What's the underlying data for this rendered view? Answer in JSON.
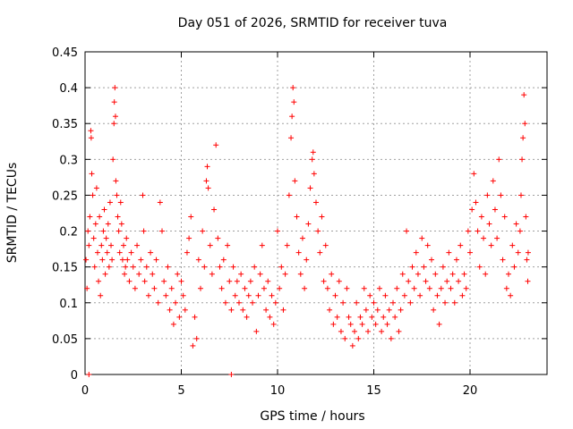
{
  "chart_data": {
    "type": "scatter",
    "title": "Day 051 of 2026, SRMTID for receiver tuva",
    "xlabel": "GPS time / hours",
    "ylabel": "SRMTID / TECUs",
    "xlim": [
      0,
      24
    ],
    "ylim": [
      0,
      0.45
    ],
    "xticks": [
      0,
      5,
      10,
      15,
      20
    ],
    "xtick_labels": [
      "0",
      "5",
      "10",
      "15",
      "20"
    ],
    "yticks": [
      0,
      0.05,
      0.1,
      0.15,
      0.2,
      0.25,
      0.3,
      0.35,
      0.4,
      0.45
    ],
    "ytick_labels": [
      "0",
      "0.05",
      "0.1",
      "0.15",
      "0.2",
      "0.25",
      "0.3",
      "0.35",
      "0.4",
      "0.45"
    ],
    "grid": true,
    "marker": "+",
    "color": "#ff0000",
    "series": [
      {
        "name": "SRMTID",
        "points": [
          [
            0.05,
            0.16
          ],
          [
            0.1,
            0.12
          ],
          [
            0.15,
            0.2
          ],
          [
            0.2,
            0.18
          ],
          [
            0.25,
            0.22
          ],
          [
            0.3,
            0.34
          ],
          [
            0.32,
            0.33
          ],
          [
            0.35,
            0.28
          ],
          [
            0.4,
            0.25
          ],
          [
            0.45,
            0.19
          ],
          [
            0.5,
            0.15
          ],
          [
            0.55,
            0.21
          ],
          [
            0.6,
            0.26
          ],
          [
            0.65,
            0.17
          ],
          [
            0.7,
            0.13
          ],
          [
            0.75,
            0.22
          ],
          [
            0.8,
            0.11
          ],
          [
            0.85,
            0.18
          ],
          [
            0.9,
            0.16
          ],
          [
            0.95,
            0.2
          ],
          [
            1.0,
            0.23
          ],
          [
            1.05,
            0.14
          ],
          [
            1.1,
            0.19
          ],
          [
            1.15,
            0.17
          ],
          [
            1.2,
            0.21
          ],
          [
            1.25,
            0.15
          ],
          [
            1.3,
            0.24
          ],
          [
            1.35,
            0.18
          ],
          [
            1.4,
            0.16
          ],
          [
            1.45,
            0.3
          ],
          [
            1.5,
            0.35
          ],
          [
            1.52,
            0.38
          ],
          [
            1.55,
            0.4
          ],
          [
            1.58,
            0.36
          ],
          [
            1.6,
            0.27
          ],
          [
            1.65,
            0.25
          ],
          [
            1.7,
            0.22
          ],
          [
            1.75,
            0.2
          ],
          [
            1.8,
            0.17
          ],
          [
            1.85,
            0.24
          ],
          [
            1.9,
            0.21
          ],
          [
            1.95,
            0.16
          ],
          [
            2.0,
            0.18
          ],
          [
            2.05,
            0.14
          ],
          [
            2.1,
            0.15
          ],
          [
            2.15,
            0.19
          ],
          [
            2.2,
            0.16
          ],
          [
            2.3,
            0.13
          ],
          [
            2.4,
            0.17
          ],
          [
            2.5,
            0.15
          ],
          [
            2.6,
            0.12
          ],
          [
            2.7,
            0.18
          ],
          [
            2.8,
            0.14
          ],
          [
            2.9,
            0.16
          ],
          [
            3.0,
            0.25
          ],
          [
            3.05,
            0.2
          ],
          [
            3.1,
            0.13
          ],
          [
            3.2,
            0.15
          ],
          [
            3.3,
            0.11
          ],
          [
            3.4,
            0.17
          ],
          [
            3.5,
            0.14
          ],
          [
            3.6,
            0.12
          ],
          [
            3.7,
            0.16
          ],
          [
            3.8,
            0.1
          ],
          [
            3.9,
            0.24
          ],
          [
            4.0,
            0.2
          ],
          [
            4.1,
            0.13
          ],
          [
            4.2,
            0.11
          ],
          [
            4.3,
            0.15
          ],
          [
            4.4,
            0.09
          ],
          [
            4.5,
            0.12
          ],
          [
            4.6,
            0.07
          ],
          [
            4.7,
            0.1
          ],
          [
            4.8,
            0.14
          ],
          [
            4.9,
            0.08
          ],
          [
            5.0,
            0.13
          ],
          [
            5.1,
            0.11
          ],
          [
            5.2,
            0.09
          ],
          [
            5.3,
            0.17
          ],
          [
            5.4,
            0.19
          ],
          [
            5.5,
            0.22
          ],
          [
            5.6,
            0.04
          ],
          [
            5.7,
            0.08
          ],
          [
            5.8,
            0.05
          ],
          [
            5.9,
            0.16
          ],
          [
            6.0,
            0.12
          ],
          [
            6.1,
            0.2
          ],
          [
            6.2,
            0.15
          ],
          [
            6.3,
            0.27
          ],
          [
            6.35,
            0.29
          ],
          [
            6.4,
            0.26
          ],
          [
            6.5,
            0.18
          ],
          [
            6.6,
            0.14
          ],
          [
            6.7,
            0.23
          ],
          [
            6.8,
            0.32
          ],
          [
            6.9,
            0.19
          ],
          [
            7.0,
            0.15
          ],
          [
            7.1,
            0.12
          ],
          [
            7.2,
            0.16
          ],
          [
            7.3,
            0.1
          ],
          [
            7.4,
            0.18
          ],
          [
            7.5,
            0.13
          ],
          [
            7.6,
            0.09
          ],
          [
            7.7,
            0.15
          ],
          [
            7.8,
            0.11
          ],
          [
            7.9,
            0.13
          ],
          [
            8.0,
            0.1
          ],
          [
            8.1,
            0.14
          ],
          [
            8.2,
            0.09
          ],
          [
            8.3,
            0.12
          ],
          [
            8.4,
            0.08
          ],
          [
            8.5,
            0.11
          ],
          [
            8.6,
            0.13
          ],
          [
            8.7,
            0.1
          ],
          [
            8.8,
            0.15
          ],
          [
            8.9,
            0.06
          ],
          [
            9.0,
            0.11
          ],
          [
            9.1,
            0.14
          ],
          [
            9.2,
            0.18
          ],
          [
            9.3,
            0.12
          ],
          [
            9.4,
            0.09
          ],
          [
            9.5,
            0.13
          ],
          [
            9.6,
            0.08
          ],
          [
            9.7,
            0.11
          ],
          [
            9.8,
            0.07
          ],
          [
            9.9,
            0.1
          ],
          [
            10.0,
            0.2
          ],
          [
            10.1,
            0.12
          ],
          [
            10.2,
            0.15
          ],
          [
            10.3,
            0.09
          ],
          [
            10.4,
            0.14
          ],
          [
            10.5,
            0.18
          ],
          [
            10.6,
            0.25
          ],
          [
            10.7,
            0.33
          ],
          [
            10.75,
            0.36
          ],
          [
            10.8,
            0.4
          ],
          [
            10.85,
            0.38
          ],
          [
            10.9,
            0.27
          ],
          [
            11.0,
            0.22
          ],
          [
            11.1,
            0.17
          ],
          [
            11.2,
            0.14
          ],
          [
            11.3,
            0.19
          ],
          [
            11.4,
            0.12
          ],
          [
            11.5,
            0.16
          ],
          [
            11.6,
            0.21
          ],
          [
            11.7,
            0.26
          ],
          [
            11.8,
            0.3
          ],
          [
            11.85,
            0.31
          ],
          [
            11.9,
            0.28
          ],
          [
            12.0,
            0.24
          ],
          [
            12.1,
            0.2
          ],
          [
            12.2,
            0.17
          ],
          [
            12.3,
            0.22
          ],
          [
            12.4,
            0.13
          ],
          [
            12.5,
            0.18
          ],
          [
            12.6,
            0.12
          ],
          [
            12.7,
            0.09
          ],
          [
            12.8,
            0.14
          ],
          [
            12.9,
            0.07
          ],
          [
            13.0,
            0.11
          ],
          [
            13.1,
            0.08
          ],
          [
            13.2,
            0.13
          ],
          [
            13.3,
            0.06
          ],
          [
            13.4,
            0.1
          ],
          [
            13.5,
            0.05
          ],
          [
            13.6,
            0.12
          ],
          [
            13.7,
            0.08
          ],
          [
            13.8,
            0.07
          ],
          [
            13.9,
            0.04
          ],
          [
            14.0,
            0.06
          ],
          [
            14.1,
            0.1
          ],
          [
            14.2,
            0.05
          ],
          [
            14.3,
            0.08
          ],
          [
            14.4,
            0.07
          ],
          [
            14.5,
            0.12
          ],
          [
            14.6,
            0.09
          ],
          [
            14.7,
            0.06
          ],
          [
            14.8,
            0.11
          ],
          [
            14.9,
            0.08
          ],
          [
            15.0,
            0.1
          ],
          [
            15.1,
            0.07
          ],
          [
            15.2,
            0.09
          ],
          [
            15.3,
            0.12
          ],
          [
            15.4,
            0.06
          ],
          [
            15.5,
            0.08
          ],
          [
            15.6,
            0.11
          ],
          [
            15.7,
            0.07
          ],
          [
            15.8,
            0.09
          ],
          [
            15.9,
            0.05
          ],
          [
            16.0,
            0.1
          ],
          [
            16.1,
            0.08
          ],
          [
            16.2,
            0.12
          ],
          [
            16.3,
            0.06
          ],
          [
            16.4,
            0.09
          ],
          [
            16.5,
            0.14
          ],
          [
            16.6,
            0.11
          ],
          [
            16.7,
            0.2
          ],
          [
            16.8,
            0.13
          ],
          [
            16.9,
            0.1
          ],
          [
            17.0,
            0.15
          ],
          [
            17.1,
            0.12
          ],
          [
            17.2,
            0.17
          ],
          [
            17.3,
            0.14
          ],
          [
            17.4,
            0.11
          ],
          [
            17.5,
            0.19
          ],
          [
            17.6,
            0.15
          ],
          [
            17.7,
            0.13
          ],
          [
            17.8,
            0.18
          ],
          [
            17.9,
            0.12
          ],
          [
            18.0,
            0.16
          ],
          [
            18.1,
            0.09
          ],
          [
            18.2,
            0.14
          ],
          [
            18.3,
            0.11
          ],
          [
            18.4,
            0.07
          ],
          [
            18.5,
            0.12
          ],
          [
            18.6,
            0.15
          ],
          [
            18.7,
            0.1
          ],
          [
            18.8,
            0.13
          ],
          [
            18.9,
            0.17
          ],
          [
            19.0,
            0.12
          ],
          [
            19.1,
            0.14
          ],
          [
            19.2,
            0.1
          ],
          [
            19.3,
            0.16
          ],
          [
            19.4,
            0.13
          ],
          [
            19.5,
            0.18
          ],
          [
            19.6,
            0.11
          ],
          [
            19.7,
            0.14
          ],
          [
            19.8,
            0.12
          ],
          [
            19.9,
            0.2
          ],
          [
            20.0,
            0.17
          ],
          [
            20.1,
            0.23
          ],
          [
            20.2,
            0.28
          ],
          [
            20.3,
            0.24
          ],
          [
            20.4,
            0.2
          ],
          [
            20.5,
            0.15
          ],
          [
            20.6,
            0.22
          ],
          [
            20.7,
            0.19
          ],
          [
            20.8,
            0.14
          ],
          [
            20.9,
            0.25
          ],
          [
            21.0,
            0.21
          ],
          [
            21.1,
            0.18
          ],
          [
            21.2,
            0.27
          ],
          [
            21.3,
            0.23
          ],
          [
            21.4,
            0.19
          ],
          [
            21.5,
            0.3
          ],
          [
            21.6,
            0.25
          ],
          [
            21.7,
            0.16
          ],
          [
            21.8,
            0.22
          ],
          [
            21.9,
            0.12
          ],
          [
            22.0,
            0.14
          ],
          [
            22.1,
            0.11
          ],
          [
            22.2,
            0.18
          ],
          [
            22.3,
            0.15
          ],
          [
            22.4,
            0.21
          ],
          [
            22.5,
            0.17
          ],
          [
            22.6,
            0.2
          ],
          [
            22.65,
            0.25
          ],
          [
            22.7,
            0.3
          ],
          [
            22.75,
            0.33
          ],
          [
            22.8,
            0.39
          ],
          [
            22.85,
            0.35
          ],
          [
            22.9,
            0.22
          ],
          [
            22.95,
            0.16
          ],
          [
            23.0,
            0.13
          ],
          [
            23.02,
            0.17
          ],
          [
            0.2,
            0.0
          ],
          [
            7.6,
            0.0
          ]
        ]
      }
    ]
  }
}
